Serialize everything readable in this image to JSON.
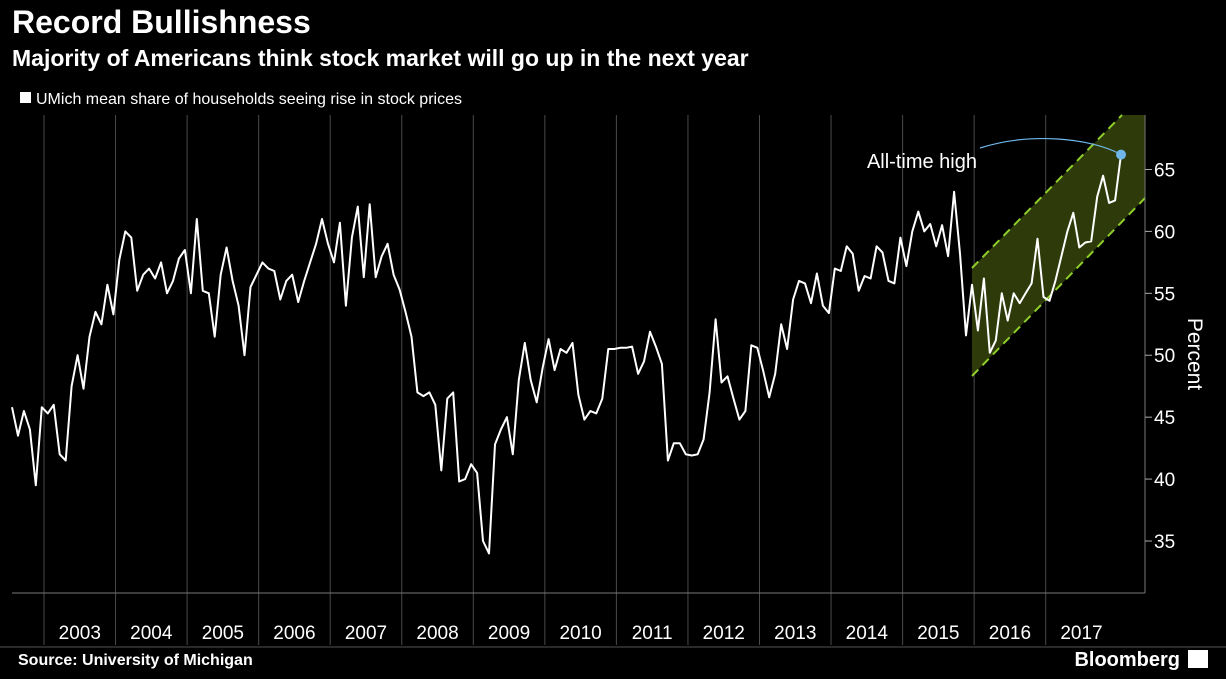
{
  "chart_data": {
    "type": "line",
    "title": "Record Bullishness",
    "subtitle": "Majority of Americans think stock market will go up in the next year",
    "y_axis_label": "Percent",
    "source": "Source: University of Michigan",
    "brand": "Bloomberg",
    "annotation": "All-time high",
    "ylim": [
      30.8,
      69.4
    ],
    "yticks": [
      35,
      40,
      45,
      50,
      55,
      60,
      65
    ],
    "xticks": [
      2003,
      2004,
      2005,
      2006,
      2007,
      2008,
      2009,
      2010,
      2011,
      2012,
      2013,
      2014,
      2015,
      2016,
      2017
    ],
    "series": [
      {
        "name": "UMich mean share of households seeing rise in stock prices",
        "color": "#ffffff",
        "values": [
          45.8,
          43.5,
          45.5,
          44,
          39.5,
          45.8,
          45.3,
          46,
          42,
          41.5,
          47.5,
          50,
          47.3,
          51.5,
          53.5,
          52.5,
          55.7,
          53.3,
          57.7,
          60,
          59.5,
          55.2,
          56.5,
          57,
          56.2,
          57.5,
          55,
          56,
          57.8,
          58.5,
          55,
          61,
          55.2,
          55,
          51.5,
          56.5,
          58.7,
          56,
          54,
          50,
          55.5,
          56.5,
          57.5,
          57,
          56.8,
          54.5,
          56,
          56.5,
          54.3,
          56,
          57.5,
          59,
          61,
          59,
          57.5,
          60.7,
          54,
          59.5,
          62,
          56.3,
          62.2,
          56.3,
          58,
          59,
          56.5,
          55.3,
          53.5,
          51.5,
          47,
          46.7,
          47,
          46,
          40.7,
          46.5,
          47,
          39.8,
          40,
          41.2,
          40.5,
          35,
          34,
          42.8,
          44,
          45,
          42,
          48,
          51,
          48,
          46.2,
          49,
          51.3,
          48.8,
          50.5,
          50.2,
          51,
          46.8,
          44.8,
          45.5,
          45.3,
          46.5,
          50.5,
          50.5,
          50.6,
          50.6,
          50.7,
          48.5,
          49.5,
          51.9,
          50.7,
          49.3,
          41.5,
          42.9,
          42.9,
          42,
          41.9,
          42,
          43.2,
          47,
          52.9,
          47.8,
          48.3,
          46.5,
          44.8,
          45.5,
          50.8,
          50.6,
          48.7,
          46.6,
          48.5,
          52.5,
          50.5,
          54.5,
          56,
          55.8,
          54.2,
          56.6,
          54,
          53.4,
          57,
          56.8,
          58.8,
          58.2,
          55.2,
          56.4,
          56.2,
          58.8,
          58.3,
          56,
          55.8,
          59.5,
          57.2,
          60,
          61.6,
          60,
          60.6,
          58.8,
          60.5,
          58,
          63.2,
          58.2,
          51.6,
          55.7,
          52,
          56.2,
          50.2,
          51.2,
          55,
          52.8,
          55,
          54.2,
          55,
          55.8,
          59.4,
          54.7,
          54.4,
          56,
          58,
          60,
          61.5,
          58.7,
          59.1,
          59.2,
          62.8,
          64.5,
          62.3,
          62.5,
          66.2
        ]
      }
    ]
  }
}
